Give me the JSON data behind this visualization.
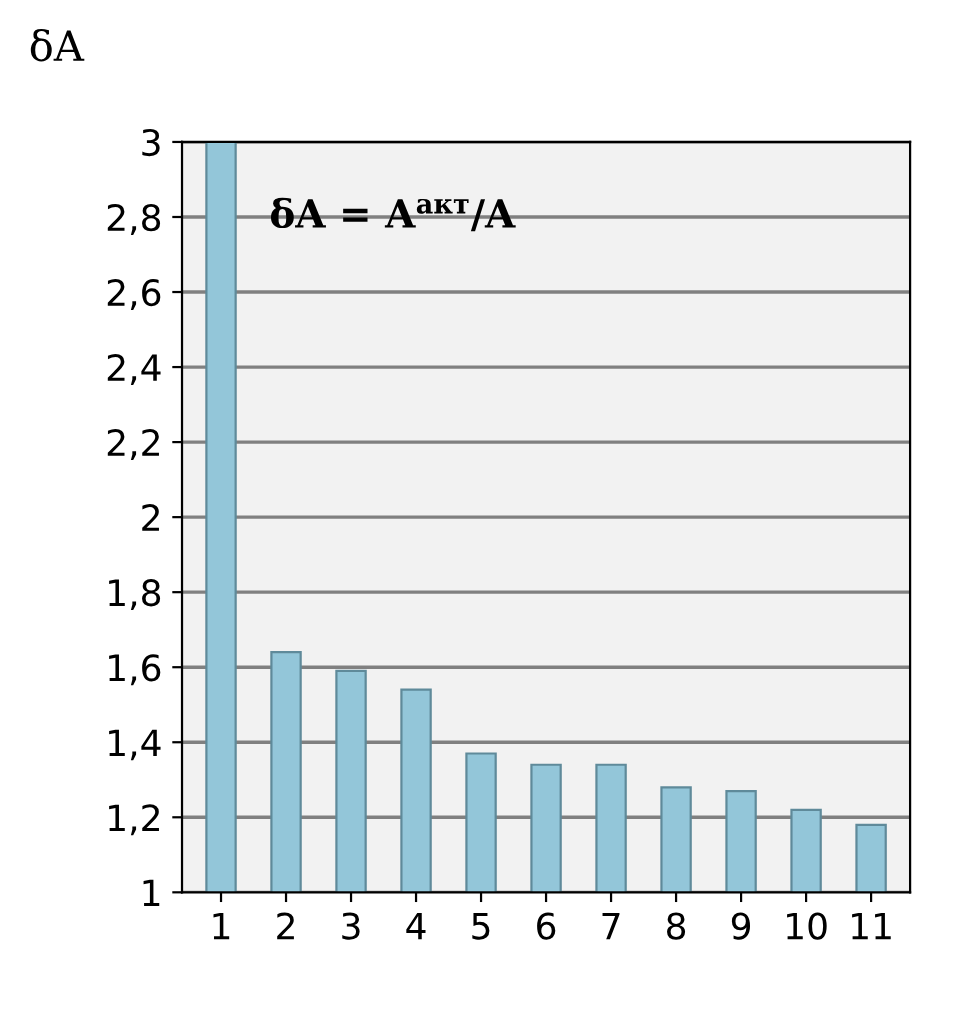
{
  "chart_data": {
    "type": "bar",
    "ylabel": "δA",
    "categories": [
      "1",
      "2",
      "3",
      "4",
      "5",
      "6",
      "7",
      "8",
      "9",
      "10",
      "11"
    ],
    "values": [
      3.0,
      1.64,
      1.59,
      1.54,
      1.37,
      1.34,
      1.34,
      1.28,
      1.27,
      1.22,
      1.18
    ],
    "color": "#93c6d9",
    "ylim": [
      1,
      3
    ],
    "yticks": [
      1,
      {
        "value": 1.2,
        "label": "1,2"
      },
      {
        "value": 1.4,
        "label": "1,4"
      },
      {
        "value": 1.6,
        "label": "1,6"
      },
      {
        "value": 1.8,
        "label": "1,8"
      },
      2,
      {
        "value": 2.2,
        "label": "2,2"
      },
      {
        "value": 2.4,
        "label": "2,4"
      },
      {
        "value": 2.6,
        "label": "2,6"
      },
      {
        "value": 2.8,
        "label": "2,8"
      },
      3
    ],
    "grid": "y",
    "annotations": [
      "δA = A$^{акт}$/A"
    ]
  }
}
